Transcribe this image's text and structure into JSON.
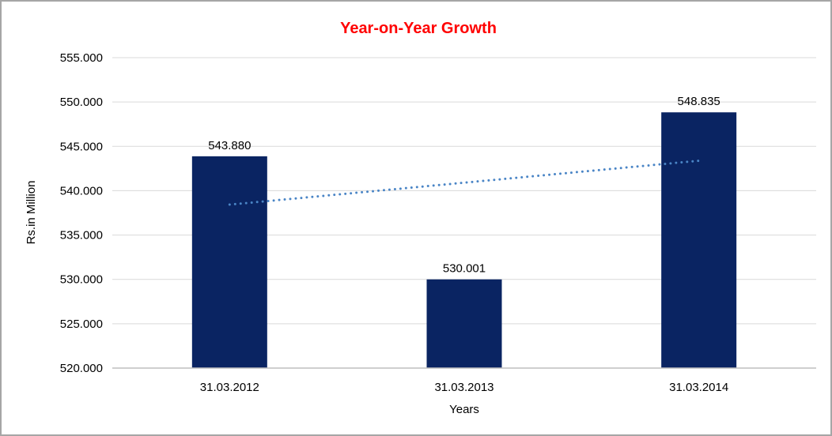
{
  "frame": {
    "border_color": "#A6A6A6",
    "background_color": "#FFFFFF"
  },
  "chart_data": {
    "type": "bar",
    "title": "Year-on-Year Growth",
    "title_color": "#FF0000",
    "categories": [
      "31.03.2012",
      "31.03.2013",
      "31.03.2014"
    ],
    "values": [
      543.88,
      530.001,
      548.835
    ],
    "value_labels": [
      "543.880",
      "530.001",
      "548.835"
    ],
    "xlabel": "Years",
    "ylabel": "Rs.in Million",
    "ylim": [
      520,
      555
    ],
    "ytick_step": 5,
    "ytick_labels": [
      "520.000",
      "525.000",
      "530.000",
      "535.000",
      "540.000",
      "545.000",
      "550.000",
      "555.000"
    ],
    "grid": true,
    "legend": "none",
    "bar_color": "#0A2462",
    "gridline_color": "#D9D9D9",
    "axisline_color": "#BFBFBF",
    "text_color": "#000000",
    "trendline": {
      "type": "linear",
      "style": "dotted",
      "color": "#4A85C6",
      "start_value": 538.43,
      "end_value": 543.38
    }
  }
}
